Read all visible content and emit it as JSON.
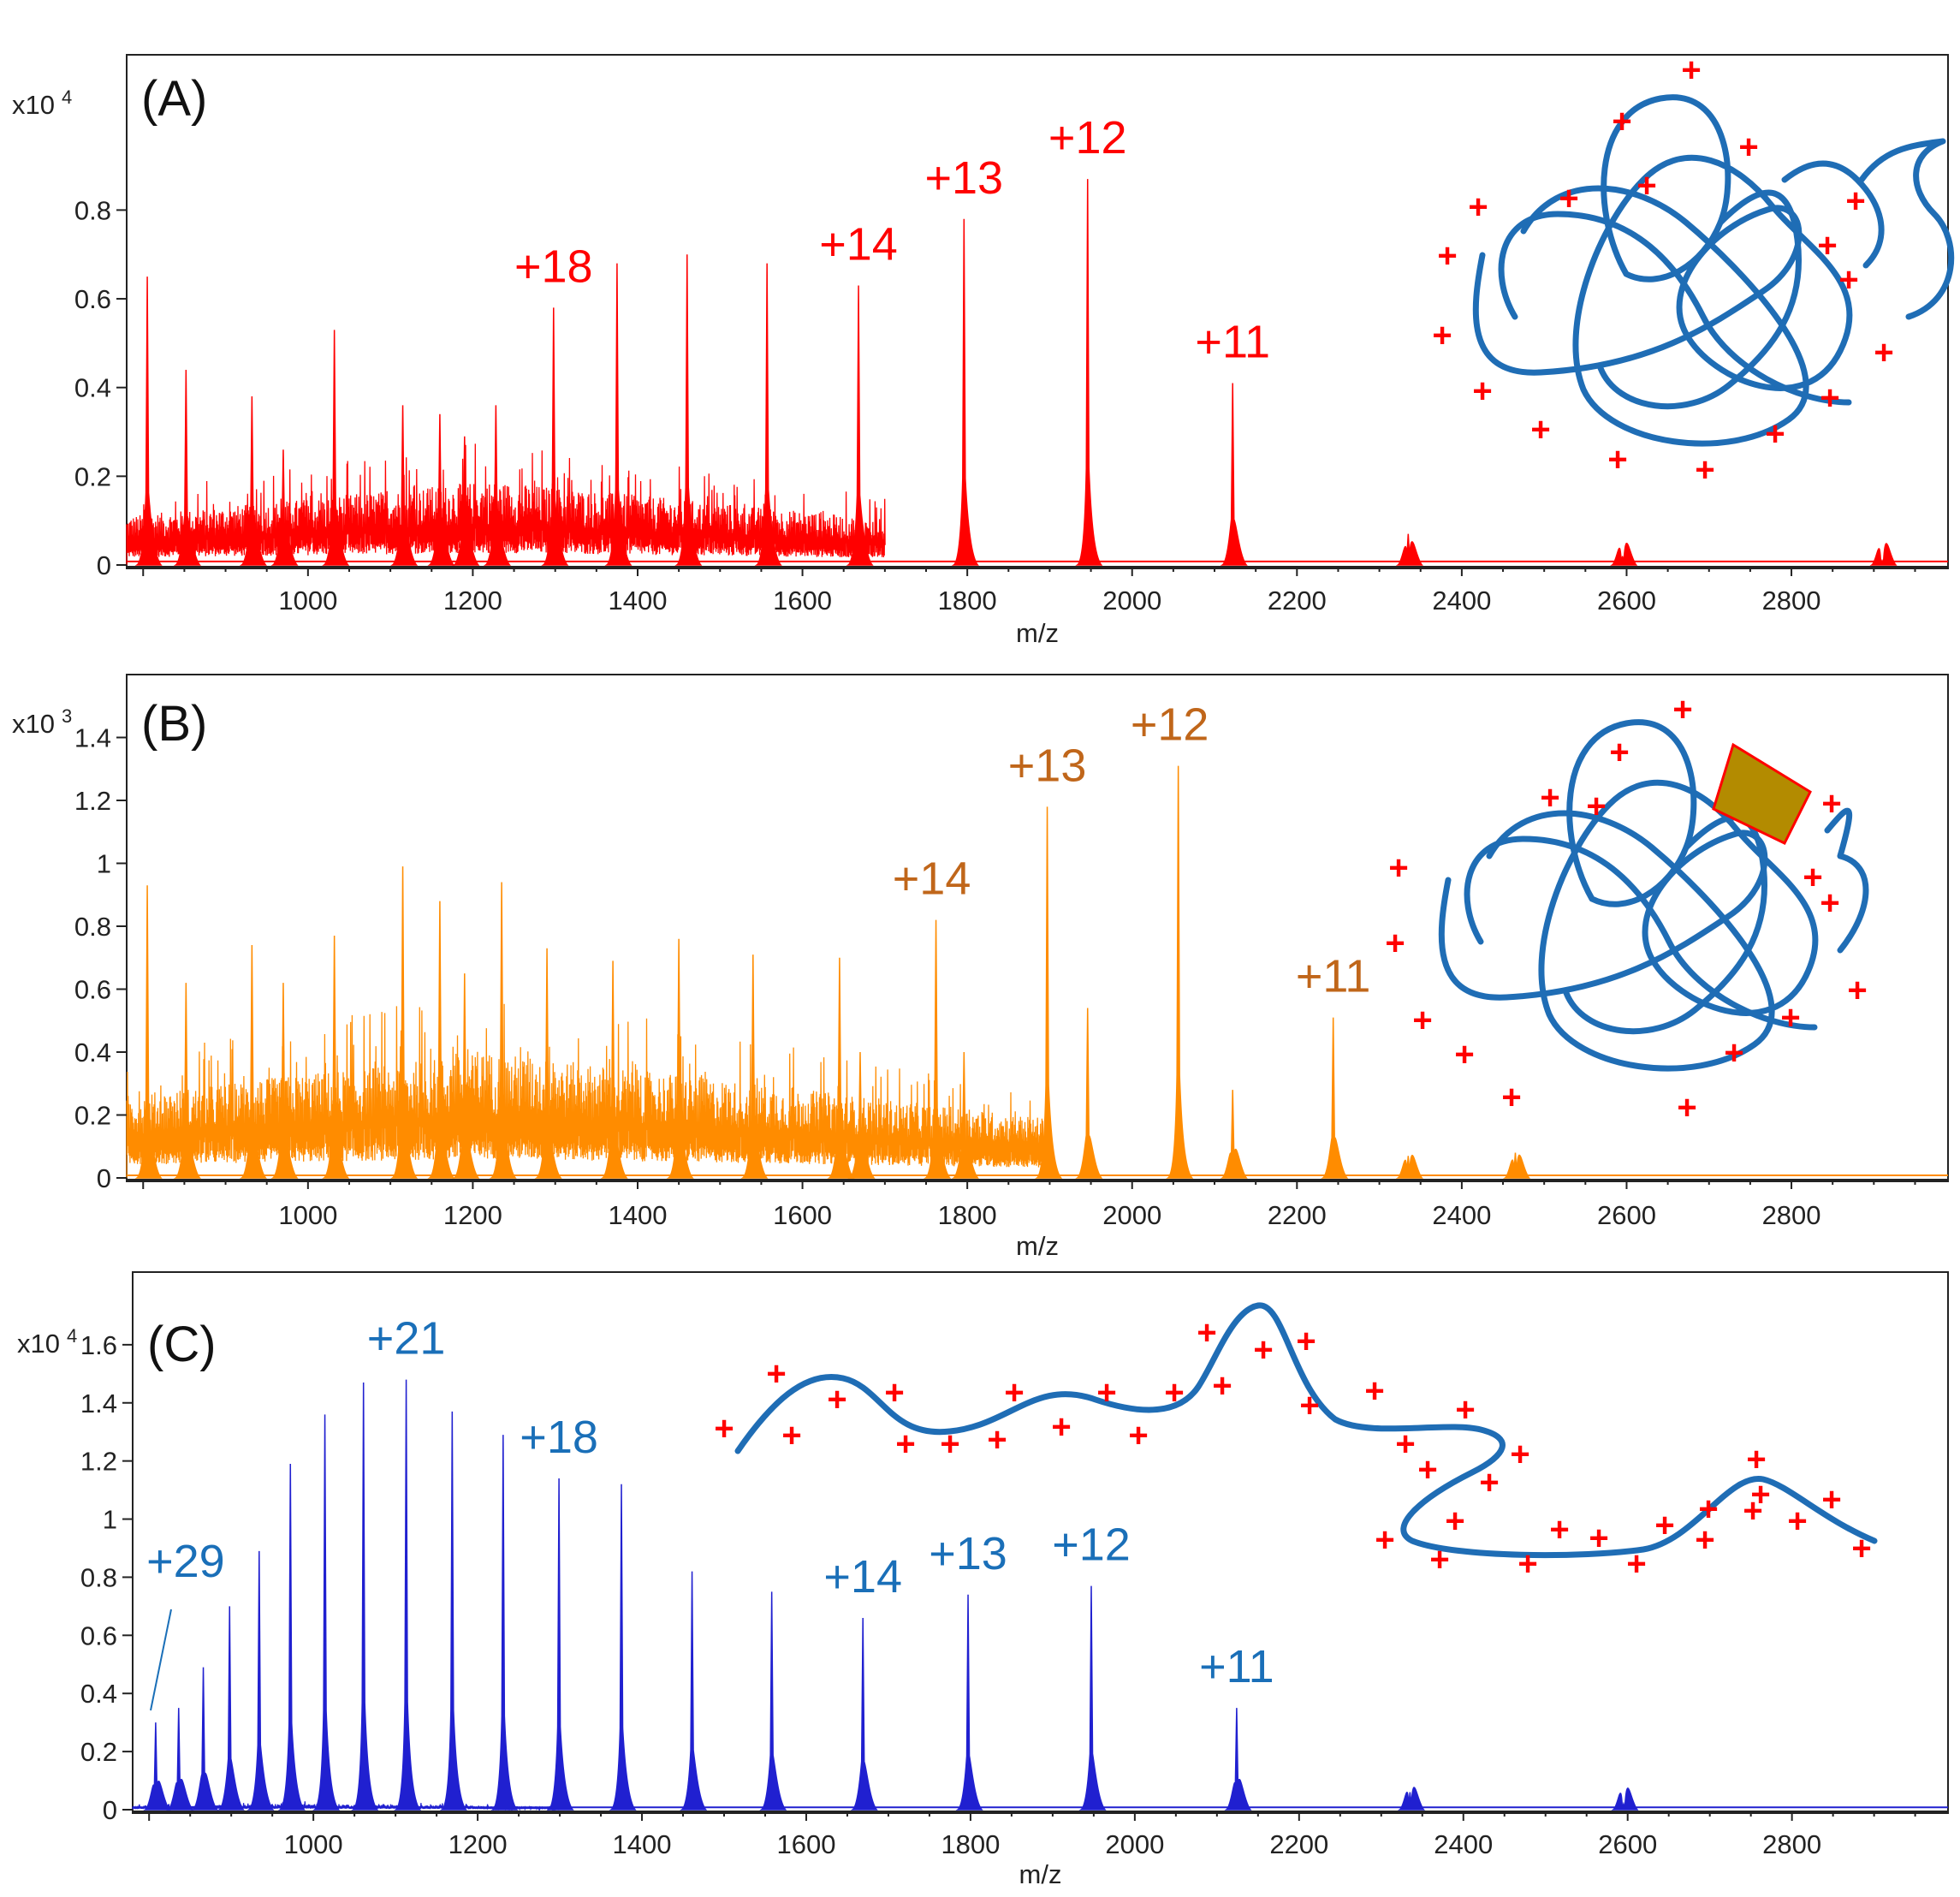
{
  "chart_data": [
    {
      "panel": "(A)",
      "type": "line",
      "xlabel": "m/z",
      "ylabel": "",
      "y_exponent_label": "x10",
      "y_exponent": "4",
      "xlim": [
        780,
        2990
      ],
      "ylim": [
        0,
        1.15
      ],
      "x_ticks": [
        1000,
        1200,
        1400,
        1600,
        1800,
        2000,
        2200,
        2400,
        2600,
        2800
      ],
      "y_ticks": [
        0,
        0.2,
        0.4,
        0.6,
        0.8
      ],
      "y_tick_labels": [
        "0",
        "0.2",
        "0.4",
        "0.6",
        "0.8"
      ],
      "color": "#ff0000",
      "label_color": "#ff0000",
      "peaks": [
        {
          "x": 805,
          "y": 0.65
        },
        {
          "x": 852,
          "y": 0.44
        },
        {
          "x": 932,
          "y": 0.38
        },
        {
          "x": 970,
          "y": 0.26
        },
        {
          "x": 1032,
          "y": 0.53
        },
        {
          "x": 1115,
          "y": 0.36
        },
        {
          "x": 1160,
          "y": 0.34
        },
        {
          "x": 1190,
          "y": 0.29
        },
        {
          "x": 1228,
          "y": 0.36
        },
        {
          "x": 1298,
          "y": 0.58
        },
        {
          "x": 1375,
          "y": 0.68
        },
        {
          "x": 1460,
          "y": 0.7
        },
        {
          "x": 1557,
          "y": 0.68
        },
        {
          "x": 1668,
          "y": 0.63
        },
        {
          "x": 1796,
          "y": 0.78
        },
        {
          "x": 1946,
          "y": 0.87
        },
        {
          "x": 2122,
          "y": 0.41
        },
        {
          "x": 2335,
          "y": 0.07
        },
        {
          "x": 2595,
          "y": 0.02
        },
        {
          "x": 2910,
          "y": 0.01
        }
      ],
      "noise": {
        "start": 780,
        "end": 1700,
        "peak_at": 1220,
        "level": 0.09,
        "amplitude": 0.2
      },
      "charge_labels": [
        {
          "text": "+18",
          "x": 1298,
          "y": 0.58
        },
        {
          "text": "+14",
          "x": 1668,
          "y": 0.63
        },
        {
          "text": "+13",
          "x": 1796,
          "y": 0.78
        },
        {
          "text": "+12",
          "x": 1946,
          "y": 0.87
        },
        {
          "text": "+11",
          "x": 2122,
          "y": 0.41
        }
      ]
    },
    {
      "panel": "(B)",
      "type": "line",
      "xlabel": "m/z",
      "ylabel": "",
      "y_exponent_label": "x10",
      "y_exponent": "3",
      "xlim": [
        780,
        2990
      ],
      "ylim": [
        0,
        1.6
      ],
      "x_ticks": [
        1000,
        1200,
        1400,
        1600,
        1800,
        2000,
        2200,
        2400,
        2600,
        2800
      ],
      "y_ticks": [
        0,
        0.2,
        0.4,
        0.6,
        0.8,
        1,
        1.2,
        1.4
      ],
      "y_tick_labels": [
        "0",
        "0.2",
        "0.4",
        "0.6",
        "0.8",
        "1",
        "1.2",
        "1.4"
      ],
      "color": "#ff8c00",
      "label_color": "#c0661a",
      "peaks": [
        {
          "x": 805,
          "y": 0.93
        },
        {
          "x": 852,
          "y": 0.62
        },
        {
          "x": 932,
          "y": 0.74
        },
        {
          "x": 970,
          "y": 0.62
        },
        {
          "x": 1032,
          "y": 0.77
        },
        {
          "x": 1115,
          "y": 0.99
        },
        {
          "x": 1160,
          "y": 0.88
        },
        {
          "x": 1190,
          "y": 0.65
        },
        {
          "x": 1235,
          "y": 0.94
        },
        {
          "x": 1290,
          "y": 0.73
        },
        {
          "x": 1370,
          "y": 0.69
        },
        {
          "x": 1450,
          "y": 0.76
        },
        {
          "x": 1540,
          "y": 0.71
        },
        {
          "x": 1645,
          "y": 0.7
        },
        {
          "x": 1670,
          "y": 0.4
        },
        {
          "x": 1762,
          "y": 0.82
        },
        {
          "x": 1796,
          "y": 0.4
        },
        {
          "x": 1897,
          "y": 1.18
        },
        {
          "x": 1946,
          "y": 0.54
        },
        {
          "x": 2056,
          "y": 1.31
        },
        {
          "x": 2122,
          "y": 0.28
        },
        {
          "x": 2244,
          "y": 0.51
        },
        {
          "x": 2335,
          "y": 0.07
        },
        {
          "x": 2465,
          "y": 0.08
        }
      ],
      "noise": {
        "start": 780,
        "end": 1900,
        "peak_at": 1220,
        "level": 0.2,
        "amplitude": 0.4
      },
      "charge_labels": [
        {
          "text": "+14",
          "x": 1762,
          "y": 0.82
        },
        {
          "text": "+13",
          "x": 1897,
          "y": 1.18
        },
        {
          "text": "+12",
          "x": 2056,
          "y": 1.31
        },
        {
          "text": "+11",
          "x": 2244,
          "y": 0.51
        }
      ]
    },
    {
      "panel": "(C)",
      "type": "line",
      "xlabel": "m/z",
      "ylabel": "",
      "y_exponent_label": "x10",
      "y_exponent": "4",
      "xlim": [
        780,
        2990
      ],
      "ylim": [
        0,
        1.85
      ],
      "x_ticks": [
        1000,
        1200,
        1400,
        1600,
        1800,
        2000,
        2200,
        2400,
        2600,
        2800
      ],
      "y_ticks": [
        0,
        0.2,
        0.4,
        0.6,
        0.8,
        1,
        1.2,
        1.4,
        1.6
      ],
      "y_tick_labels": [
        "0",
        "0.2",
        "0.4",
        "0.6",
        "0.8",
        "1",
        "1.2",
        "1.4",
        "1.6"
      ],
      "color": "#2020d0",
      "label_color": "#1a6fb8",
      "peaks": [
        {
          "x": 808,
          "y": 0.3
        },
        {
          "x": 836,
          "y": 0.35
        },
        {
          "x": 866,
          "y": 0.49
        },
        {
          "x": 898,
          "y": 0.7
        },
        {
          "x": 934,
          "y": 0.89
        },
        {
          "x": 972,
          "y": 1.19
        },
        {
          "x": 1014,
          "y": 1.36
        },
        {
          "x": 1061,
          "y": 1.47
        },
        {
          "x": 1113,
          "y": 1.48
        },
        {
          "x": 1169,
          "y": 1.37
        },
        {
          "x": 1231,
          "y": 1.29
        },
        {
          "x": 1299,
          "y": 1.14
        },
        {
          "x": 1375,
          "y": 1.12
        },
        {
          "x": 1461,
          "y": 0.82
        },
        {
          "x": 1558,
          "y": 0.75
        },
        {
          "x": 1669,
          "y": 0.66
        },
        {
          "x": 1797,
          "y": 0.74
        },
        {
          "x": 1947,
          "y": 0.77
        },
        {
          "x": 2124,
          "y": 0.35
        },
        {
          "x": 2335,
          "y": 0.06
        },
        {
          "x": 2595,
          "y": 0.02
        }
      ],
      "noise": {
        "start": 780,
        "end": 1300,
        "peak_at": 1000,
        "level": 0.01,
        "amplitude": 0.02
      },
      "charge_labels": [
        {
          "text": "+29",
          "x": 808,
          "y": 0.3
        },
        {
          "text": "+21",
          "x": 1113,
          "y": 1.48
        },
        {
          "text": "+18",
          "x": 1299,
          "y": 1.14
        },
        {
          "text": "+14",
          "x": 1669,
          "y": 0.66
        },
        {
          "text": "+13",
          "x": 1797,
          "y": 0.74
        },
        {
          "text": "+12",
          "x": 1947,
          "y": 0.77
        },
        {
          "text": "+11",
          "x": 2124,
          "y": 0.35
        }
      ]
    }
  ],
  "illustrations": {
    "plus_symbol": "+",
    "chain_color": "#1f6db5",
    "plus_color": "#ff0000",
    "ligand_color": "#b38b00",
    "ligand_icon": "ligand-shape"
  }
}
